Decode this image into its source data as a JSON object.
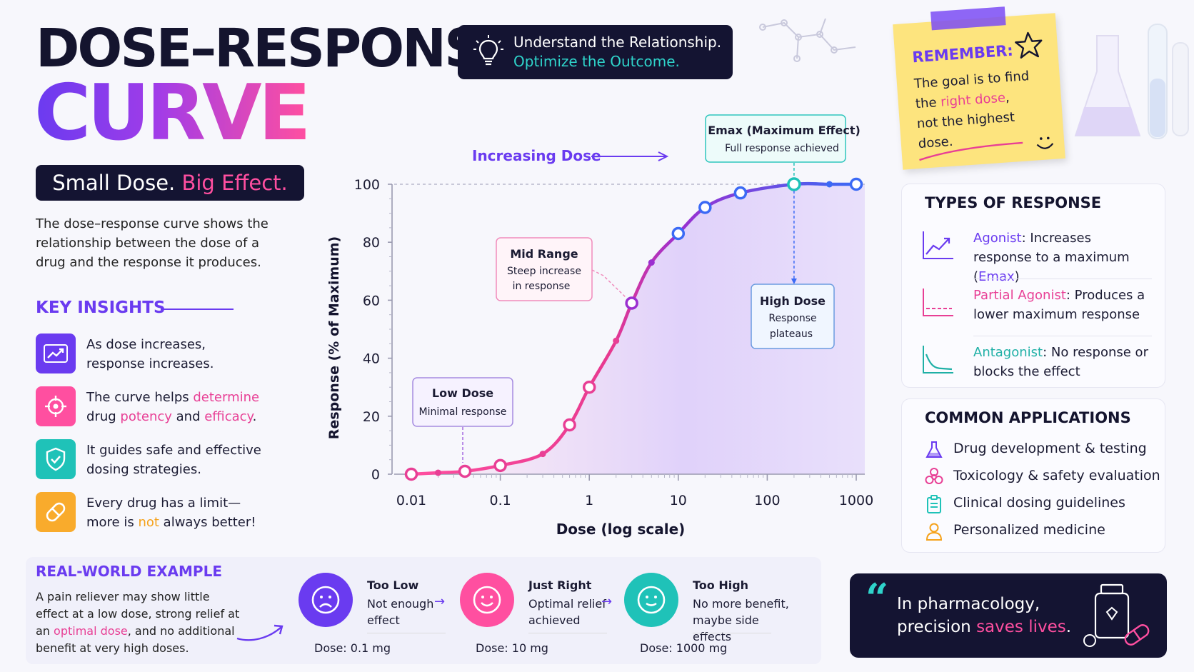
{
  "header": {
    "title_line1": "DOSE–RESPONSE",
    "title_line2": "CURVE",
    "tagline_a": "Small Dose.",
    "tagline_b": "Big Effect.",
    "intro": "The dose–response curve shows the relationship between the dose of a drug and the response it produces.",
    "pill_line1": "Understand the Relationship.",
    "pill_line2": "Optimize the Outcome."
  },
  "insights": {
    "heading": "KEY INSIGHTS",
    "items": [
      {
        "a": "As dose increases,",
        "b": "response increases.",
        "icon": "trend-up-icon",
        "color": "#6a3bf0"
      },
      {
        "a": "The curve helps ",
        "a_hl": "determine",
        "b1": "drug ",
        "b_hl1": "potency",
        "b2": " and ",
        "b_hl2": "efficacy",
        "b3": ".",
        "icon": "target-icon",
        "color": "#ff4fa0"
      },
      {
        "a": "It guides safe and effective",
        "b": "dosing strategies.",
        "icon": "shield-check-icon",
        "color": "#1fc2b8"
      },
      {
        "a": "Every drug has a limit—",
        "b1": "more is ",
        "b_hl": "not",
        "b2": " always better!",
        "icon": "pill-icon",
        "color": "#f9ab2c"
      }
    ]
  },
  "chart_data": {
    "type": "line",
    "title": "",
    "xlabel": "Dose (log scale)",
    "ylabel": "Response (% of Maximum)",
    "x_scale": "log",
    "x_ticks": [
      "0.01",
      "0.1",
      "1",
      "10",
      "100",
      "1000"
    ],
    "y_ticks": [
      "0",
      "20",
      "40",
      "60",
      "80",
      "100"
    ],
    "ylim": [
      0,
      100
    ],
    "xlim": [
      0.01,
      1000
    ],
    "grid": false,
    "series": [
      {
        "x": [
          0.01,
          0.02,
          0.04,
          0.1,
          0.3,
          0.6,
          1,
          2,
          3,
          5,
          10,
          20,
          50,
          200,
          500,
          1000
        ],
        "y": [
          0,
          0.5,
          1,
          3,
          7,
          17,
          30,
          46,
          59,
          73,
          83,
          92,
          97,
          100,
          100,
          100
        ]
      }
    ],
    "callouts": [
      {
        "title": "Low Dose",
        "text": "Minimal response"
      },
      {
        "title": "Mid Range",
        "text": "Steep increase in response"
      },
      {
        "title": "High Dose",
        "text": "Response plateaus"
      },
      {
        "title": "Emax (Maximum Effect)",
        "text": "Full response achieved"
      }
    ],
    "annotation": "Increasing Dose",
    "colors": {
      "low": "#ff4fa0",
      "high": "#3b6af5",
      "fill": "#e7d9fb",
      "emax": "#1fc2b8"
    }
  },
  "remember": {
    "heading": "REMEMBER:",
    "line1": "The goal is to find",
    "line2a": "the ",
    "line2_hl": "right dose",
    "line2b": ",",
    "line3": "not the highest dose."
  },
  "types": {
    "heading": "TYPES OF RESPONSE",
    "items": [
      {
        "name": "Agonist",
        "desc": ": Increases response to a maximum (",
        "hl": "Emax",
        "end": ")",
        "color": "#6a3bf0"
      },
      {
        "name": "Partial Agonist",
        "desc": ": Produces a lower maximum response",
        "color": "#e83f95"
      },
      {
        "name": "Antagonist",
        "desc": ": No response or blocks the effect",
        "color": "#1fb0a6"
      }
    ]
  },
  "applications": {
    "heading": "COMMON APPLICATIONS",
    "items": [
      {
        "label": "Drug development & testing",
        "icon": "flask-icon"
      },
      {
        "label": "Toxicology & safety evaluation",
        "icon": "biohazard-icon"
      },
      {
        "label": "Clinical dosing guidelines",
        "icon": "clipboard-icon"
      },
      {
        "label": "Personalized medicine",
        "icon": "person-icon"
      }
    ]
  },
  "real_world": {
    "heading": "REAL-WORLD EXAMPLE",
    "text_a": "A pain reliever may show little effect at a low dose, strong relief at an ",
    "text_hl": "optimal dose",
    "text_b": ", and no additional benefit at very high doses.",
    "cases": [
      {
        "title": "Too Low",
        "desc": "Not enough effect",
        "dose": "Dose: 0.1 mg",
        "color": "#6a3bf0"
      },
      {
        "title": "Just Right",
        "desc": "Optimal relief achieved",
        "dose": "Dose: 10 mg",
        "color": "#ff4fa0"
      },
      {
        "title": "Too High",
        "desc": "No more benefit, maybe side effects",
        "dose": "Dose: 1000 mg",
        "color": "#1fc2b8"
      }
    ]
  },
  "quote": {
    "mark": "“",
    "line1": "In pharmacology,",
    "line2a": "precision ",
    "line2_hl": "saves lives",
    "line2b": "."
  }
}
